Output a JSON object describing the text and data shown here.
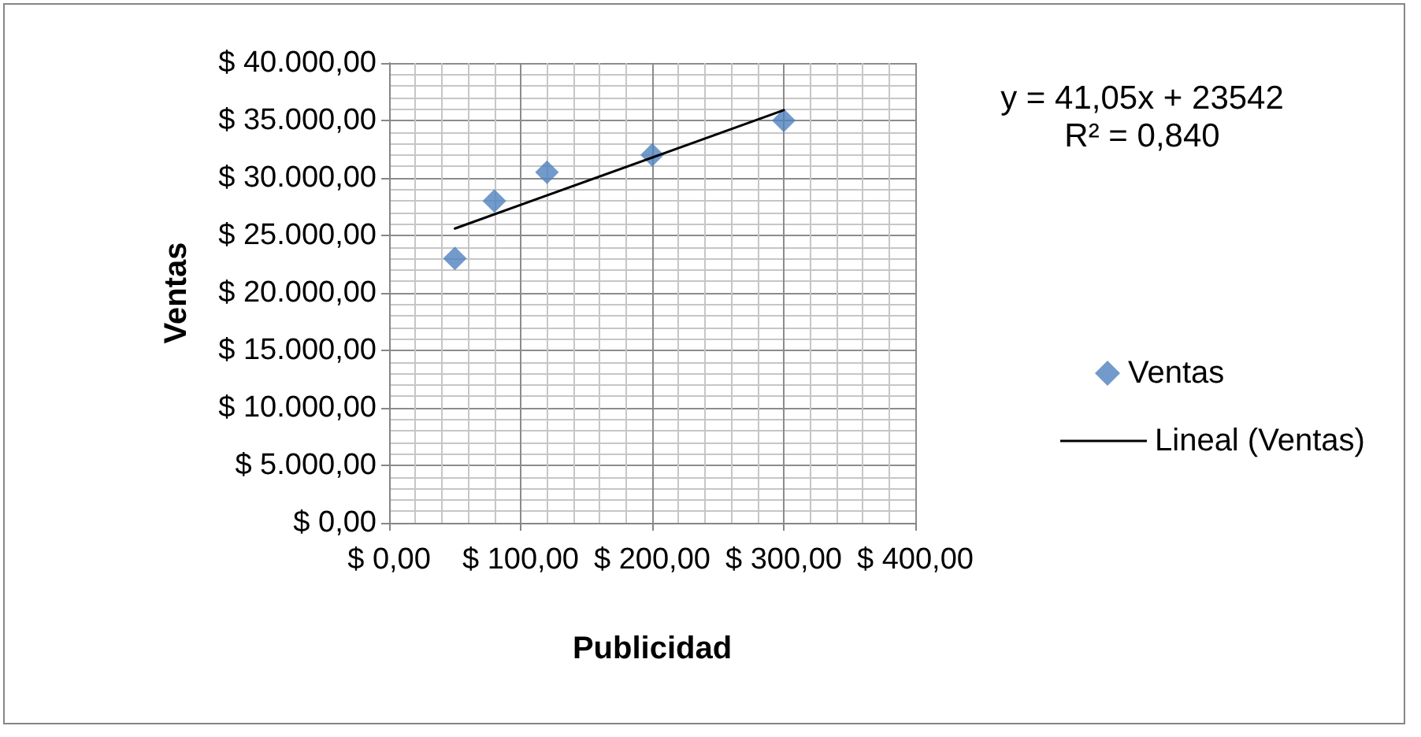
{
  "chart_data": {
    "type": "scatter",
    "xlabel": "Publicidad",
    "ylabel": "Ventas",
    "annotations": [
      "y = 41,05x + 23542",
      "R² = 0,840"
    ],
    "xlim": [
      0,
      400
    ],
    "ylim": [
      0,
      40000
    ],
    "xticks": [
      {
        "value": 0,
        "label": "$ 0,00"
      },
      {
        "value": 100,
        "label": "$ 100,00"
      },
      {
        "value": 200,
        "label": "$ 200,00"
      },
      {
        "value": 300,
        "label": "$ 300,00"
      },
      {
        "value": 400,
        "label": "$ 400,00"
      }
    ],
    "yticks": [
      {
        "value": 0,
        "label": "$ 0,00"
      },
      {
        "value": 5000,
        "label": "$ 5.000,00"
      },
      {
        "value": 10000,
        "label": "$ 10.000,00"
      },
      {
        "value": 15000,
        "label": "$ 15.000,00"
      },
      {
        "value": 20000,
        "label": "$ 20.000,00"
      },
      {
        "value": 25000,
        "label": "$ 25.000,00"
      },
      {
        "value": 30000,
        "label": "$ 30.000,00"
      },
      {
        "value": 35000,
        "label": "$ 35.000,00"
      },
      {
        "value": 40000,
        "label": "$ 40.000,00"
      }
    ],
    "grid": true,
    "legend": "right",
    "series": [
      {
        "name": "Ventas",
        "marker": "diamond",
        "color": "#4f81bd",
        "x": [
          50,
          80,
          120,
          200,
          300
        ],
        "values": [
          23000,
          28000,
          30500,
          32000,
          35000
        ]
      },
      {
        "name": "Lineal (Ventas)",
        "type": "line",
        "color": "#000000",
        "line_style": "solid",
        "x": [
          50,
          300
        ],
        "values": [
          25600,
          35900
        ]
      }
    ]
  }
}
